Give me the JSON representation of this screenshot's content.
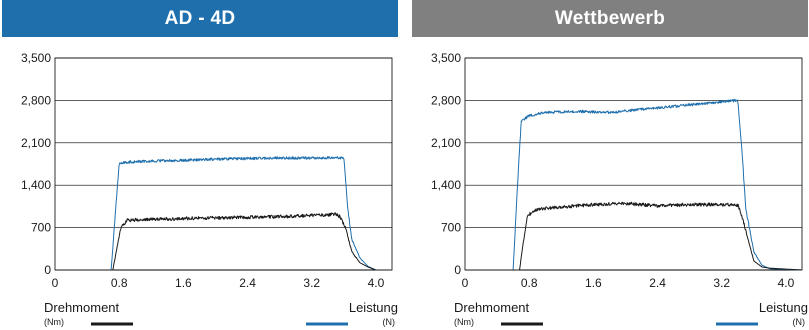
{
  "panels": [
    {
      "title": "AD - 4D",
      "header_color": "#1f6fad",
      "legend": {
        "torque_label": "Drehmoment",
        "torque_unit": "(Nm)",
        "force_label": "Leistung",
        "force_unit": "(N)"
      }
    },
    {
      "title": "Wettbewerb",
      "header_color": "#808080",
      "legend": {
        "torque_label": "Drehmoment",
        "torque_unit": "(Nm)",
        "force_label": "Leistung",
        "force_unit": "(N)"
      }
    }
  ],
  "colors": {
    "torque": "#1a1a1a",
    "force": "#1f6fad",
    "grid": "#000000"
  },
  "chart_data": [
    {
      "type": "line",
      "title": "AD - 4D",
      "xlim": [
        0,
        4.2
      ],
      "ylim": [
        0,
        3500
      ],
      "x_ticks": [
        "0",
        "0.8",
        "1.6",
        "2.4",
        "3.2",
        "4.0"
      ],
      "y_ticks": [
        "0",
        "700",
        "1,400",
        "2,100",
        "2,800",
        "3,500"
      ],
      "grid": "horizontal",
      "series": [
        {
          "name": "Leistung",
          "unit": "(N)",
          "color": "#1f6fad",
          "x": [
            0,
            0.7,
            0.75,
            0.8,
            0.9,
            1.2,
            1.6,
            2.0,
            2.4,
            2.8,
            3.2,
            3.5,
            3.6,
            3.65,
            3.7,
            3.8,
            3.9,
            4.0,
            4.2
          ],
          "y": [
            0,
            0,
            900,
            1760,
            1780,
            1800,
            1810,
            1830,
            1840,
            1850,
            1850,
            1850,
            1850,
            1000,
            500,
            200,
            60,
            0,
            0
          ]
        },
        {
          "name": "Drehmoment",
          "unit": "(Nm)",
          "color": "#1a1a1a",
          "x": [
            0,
            0.72,
            0.77,
            0.82,
            0.9,
            1.2,
            1.6,
            2.0,
            2.4,
            2.8,
            3.2,
            3.5,
            3.55,
            3.62,
            3.7,
            3.8,
            3.9,
            4.0,
            4.2
          ],
          "y": [
            0,
            0,
            350,
            700,
            820,
            840,
            850,
            860,
            870,
            880,
            900,
            920,
            880,
            700,
            300,
            120,
            50,
            0,
            0
          ]
        }
      ]
    },
    {
      "type": "line",
      "title": "Wettbewerb",
      "xlim": [
        0,
        4.2
      ],
      "ylim": [
        0,
        3500
      ],
      "x_ticks": [
        "0",
        "0.8",
        "1.6",
        "2.4",
        "3.2",
        "4.0"
      ],
      "y_ticks": [
        "0",
        "700",
        "1,400",
        "2,100",
        "2,800",
        "3,500"
      ],
      "grid": "horizontal",
      "series": [
        {
          "name": "Leistung",
          "unit": "(N)",
          "color": "#1f6fad",
          "x": [
            0,
            0.6,
            0.65,
            0.7,
            0.8,
            1.0,
            1.4,
            1.8,
            2.2,
            2.6,
            3.0,
            3.2,
            3.4,
            3.45,
            3.5,
            3.6,
            3.7,
            3.8,
            4.2
          ],
          "y": [
            0,
            0,
            1300,
            2450,
            2550,
            2600,
            2620,
            2600,
            2650,
            2700,
            2750,
            2780,
            2800,
            2000,
            1000,
            300,
            80,
            20,
            0
          ]
        },
        {
          "name": "Drehmoment",
          "unit": "(Nm)",
          "color": "#1a1a1a",
          "x": [
            0,
            0.68,
            0.72,
            0.78,
            0.9,
            1.2,
            1.6,
            2.0,
            2.4,
            2.8,
            3.2,
            3.4,
            3.45,
            3.55,
            3.6,
            3.7,
            3.8,
            4.2
          ],
          "y": [
            0,
            0,
            400,
            900,
            1000,
            1040,
            1080,
            1100,
            1060,
            1080,
            1080,
            1070,
            900,
            400,
            150,
            50,
            30,
            0
          ]
        }
      ]
    }
  ]
}
